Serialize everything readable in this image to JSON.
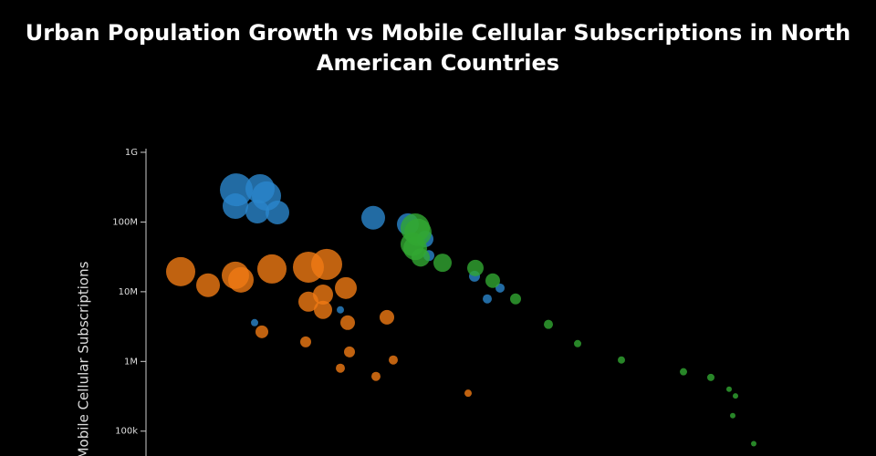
{
  "chart_data": {
    "type": "scatter",
    "title": "Urban Population Growth vs Mobile Cellular Subscriptions in North American Countries",
    "y_label": "Mobile Cellular Subscriptions",
    "log_y": true,
    "xlim": [
      0,
      800
    ],
    "ylim": [
      44000,
      1000000000
    ],
    "yticks": [
      {
        "value": 1000000000,
        "label": "1G"
      },
      {
        "value": 100000000,
        "label": "100M"
      },
      {
        "value": 10000000,
        "label": "10M"
      },
      {
        "value": 1000000,
        "label": "1M"
      },
      {
        "value": 100000,
        "label": "100k"
      }
    ],
    "series": [
      {
        "color": "#2b86cc",
        "x": [
          99,
          125,
          132,
          98,
          122,
          144,
          249,
          287,
          306,
          310,
          360,
          388,
          374,
          213,
          119
        ],
        "values": [
          290000000,
          300000000,
          236000000,
          169000000,
          141000000,
          137000000,
          115000000,
          93000000,
          57000000,
          33000000,
          16700000,
          11300000,
          7900000,
          5500000,
          3600000
        ],
        "sizes": [
          18,
          16,
          16,
          14,
          13,
          13,
          13,
          12,
          9,
          6,
          6,
          5,
          5,
          4,
          4
        ]
      },
      {
        "color": "#f07a14",
        "x": [
          38,
          68,
          98,
          104,
          138,
          178,
          198,
          178,
          194,
          194,
          219,
          221,
          264,
          127,
          175,
          223,
          271,
          213,
          252,
          353
        ],
        "values": [
          19400000,
          12400000,
          17200000,
          14800000,
          21200000,
          22500000,
          24700000,
          7200000,
          9100000,
          5500000,
          11300000,
          3600000,
          4300000,
          2660000,
          1910000,
          1370000,
          1050000,
          800000,
          610000,
          350000
        ],
        "sizes": [
          16,
          13,
          15,
          14,
          16,
          17,
          17,
          11,
          11,
          10,
          12,
          8,
          8,
          7,
          6,
          6,
          5,
          5,
          5,
          4
        ]
      },
      {
        "color": "#32a832",
        "x": [
          295,
          298,
          292,
          295,
          301,
          325,
          361,
          380,
          405,
          441,
          473,
          521,
          589,
          619,
          639,
          646,
          643,
          666
        ],
        "values": [
          82000000,
          71000000,
          48000000,
          42000000,
          31000000,
          26000000,
          21900000,
          14400000,
          7900000,
          3400000,
          1800000,
          1050000,
          710000,
          590000,
          400000,
          320000,
          167000,
          66000
        ],
        "sizes": [
          16,
          15,
          13,
          13,
          10,
          10,
          9,
          8,
          6,
          5,
          4,
          4,
          4,
          4,
          3,
          3,
          3,
          3
        ]
      }
    ]
  }
}
